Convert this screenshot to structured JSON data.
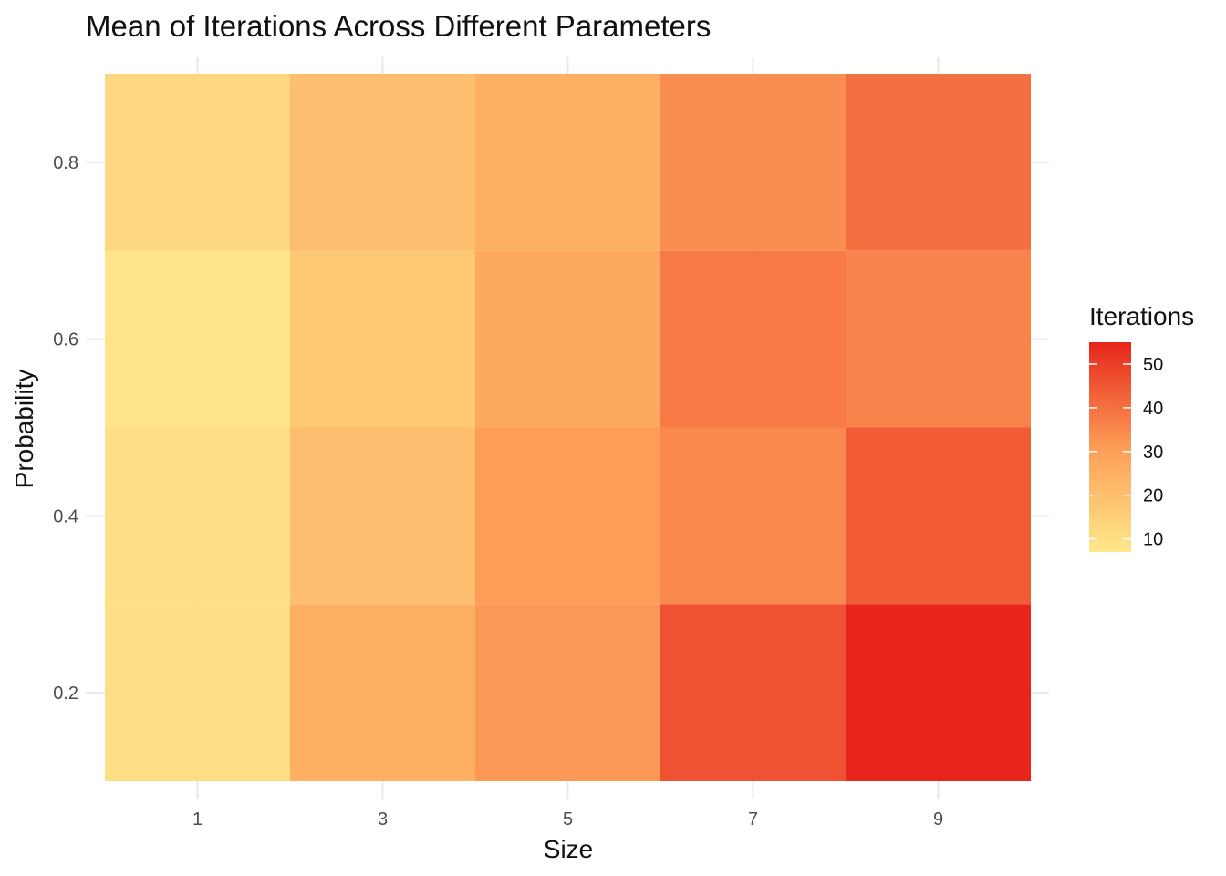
{
  "chart_data": {
    "type": "heatmap",
    "title": "Mean of Iterations Across Different Parameters",
    "xlabel": "Size",
    "ylabel": "Probability",
    "x": [
      1,
      3,
      5,
      7,
      9
    ],
    "y": [
      0.2,
      0.4,
      0.6,
      0.8
    ],
    "x_ticks": [
      "1",
      "3",
      "5",
      "7",
      "9"
    ],
    "y_ticks": [
      "0.2",
      "0.4",
      "0.6",
      "0.8"
    ],
    "xlim": [
      0,
      10
    ],
    "ylim": [
      0.1,
      0.9
    ],
    "values": [
      [
        10,
        25,
        32,
        46,
        55
      ],
      [
        10,
        20,
        31,
        35,
        44
      ],
      [
        8,
        17,
        27,
        38,
        36
      ],
      [
        12,
        20,
        25,
        34,
        40
      ]
    ],
    "legend": {
      "title": "Iterations",
      "ticks": [
        "10",
        "20",
        "30",
        "40",
        "50"
      ],
      "range": [
        7,
        55
      ]
    },
    "colors": {
      "low": "#fee88b",
      "mid": "#fd9d57",
      "high": "#e7251b",
      "grid": "#e8e8e8"
    },
    "grid": true,
    "legend_position": "right"
  }
}
